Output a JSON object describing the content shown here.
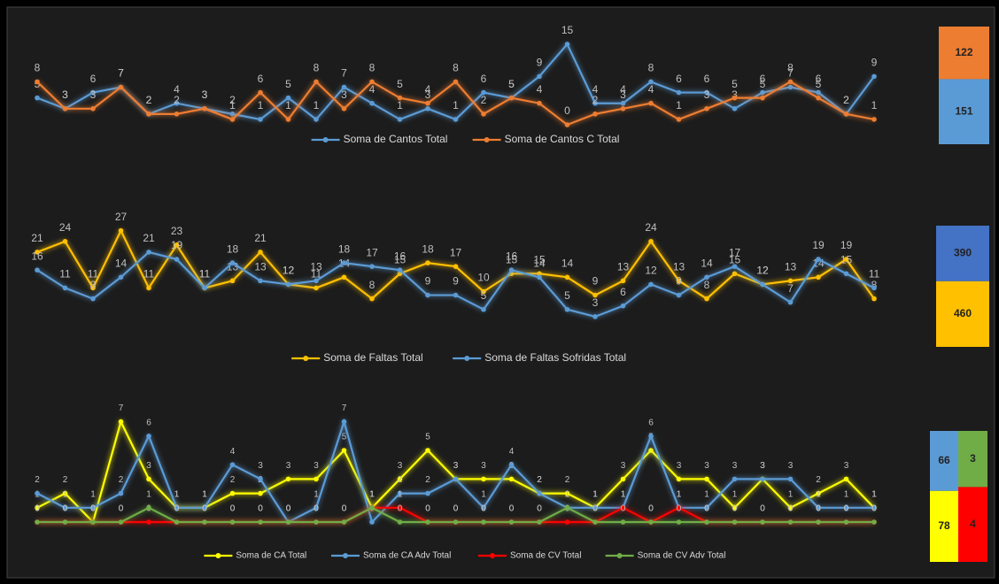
{
  "chart_data": [
    {
      "type": "line",
      "series": [
        {
          "name": "Soma de Cantos Total",
          "color": "#5b9bd5",
          "values": [
            5,
            3,
            6,
            7,
            2,
            4,
            3,
            2,
            1,
            5,
            1,
            7,
            4,
            1,
            3,
            1,
            6,
            5,
            9,
            15,
            4,
            4,
            8,
            6,
            6,
            3,
            6,
            7,
            6,
            2,
            9
          ],
          "total": 151,
          "total_color": "#5b9bd5"
        },
        {
          "name": "Soma de Cantos C Total",
          "color": "#ed7d31",
          "values": [
            8,
            3,
            3,
            7,
            2,
            2,
            3,
            1,
            6,
            1,
            8,
            3,
            8,
            5,
            4,
            8,
            2,
            5,
            4,
            0,
            2,
            3,
            4,
            1,
            3,
            5,
            5,
            8,
            5,
            2,
            1
          ],
          "total": 122,
          "total_color": "#ed7d31"
        }
      ]
    },
    {
      "type": "line",
      "series": [
        {
          "name": "Soma de Faltas Total",
          "color": "#ffc000",
          "values": [
            21,
            24,
            11,
            27,
            11,
            23,
            11,
            13,
            21,
            12,
            11,
            14,
            8,
            15,
            18,
            17,
            10,
            15,
            15,
            14,
            9,
            13,
            24,
            13,
            8,
            15,
            12,
            13,
            14,
            19,
            8
          ],
          "total": 460,
          "total_color": "#ffc000"
        },
        {
          "name": "Soma de Faltas Sofridas Total",
          "color": "#5b9bd5",
          "values": [
            16,
            11,
            8,
            14,
            21,
            19,
            11,
            18,
            13,
            12,
            13,
            18,
            17,
            16,
            9,
            9,
            5,
            16,
            14,
            5,
            3,
            6,
            12,
            9,
            14,
            17,
            12,
            7,
            19,
            15,
            11
          ],
          "total": 390,
          "total_color": "#4472c4"
        }
      ]
    },
    {
      "type": "line",
      "series": [
        {
          "name": "Soma de CA Total",
          "color": "#ffff00",
          "values": [
            1,
            2,
            0,
            7,
            3,
            1,
            1,
            2,
            2,
            3,
            3,
            5,
            1,
            3,
            5,
            3,
            3,
            3,
            2,
            2,
            1,
            3,
            5,
            3,
            3,
            1,
            3,
            1,
            2,
            3,
            1
          ],
          "total": 78,
          "total_color": "#ffff00"
        },
        {
          "name": "Soma de CA Adv Total",
          "color": "#5b9bd5",
          "values": [
            2,
            1,
            1,
            2,
            6,
            1,
            1,
            4,
            3,
            0,
            1,
            7,
            0,
            2,
            2,
            3,
            1,
            4,
            2,
            1,
            1,
            1,
            6,
            1,
            1,
            3,
            3,
            3,
            1,
            1,
            1
          ],
          "total": 66,
          "total_color": "#5b9bd5"
        },
        {
          "name": "Soma de CV Total",
          "color": "#ff0000",
          "values": [
            0,
            0,
            0,
            0,
            0,
            0,
            0,
            0,
            0,
            0,
            0,
            0,
            1,
            1,
            0,
            0,
            0,
            0,
            0,
            0,
            0,
            1,
            0,
            1,
            0,
            0,
            0,
            0,
            0,
            0,
            0
          ],
          "total": 4,
          "total_color": "#ff0000"
        },
        {
          "name": "Soma de CV Adv Total",
          "color": "#70ad47",
          "values": [
            0,
            0,
            0,
            0,
            1,
            0,
            0,
            0,
            0,
            0,
            0,
            0,
            1,
            0,
            0,
            0,
            0,
            0,
            0,
            1,
            0,
            0,
            0,
            0,
            0,
            0,
            0,
            0,
            0,
            0,
            0
          ],
          "total": 3,
          "total_color": "#70ad47"
        }
      ]
    }
  ]
}
